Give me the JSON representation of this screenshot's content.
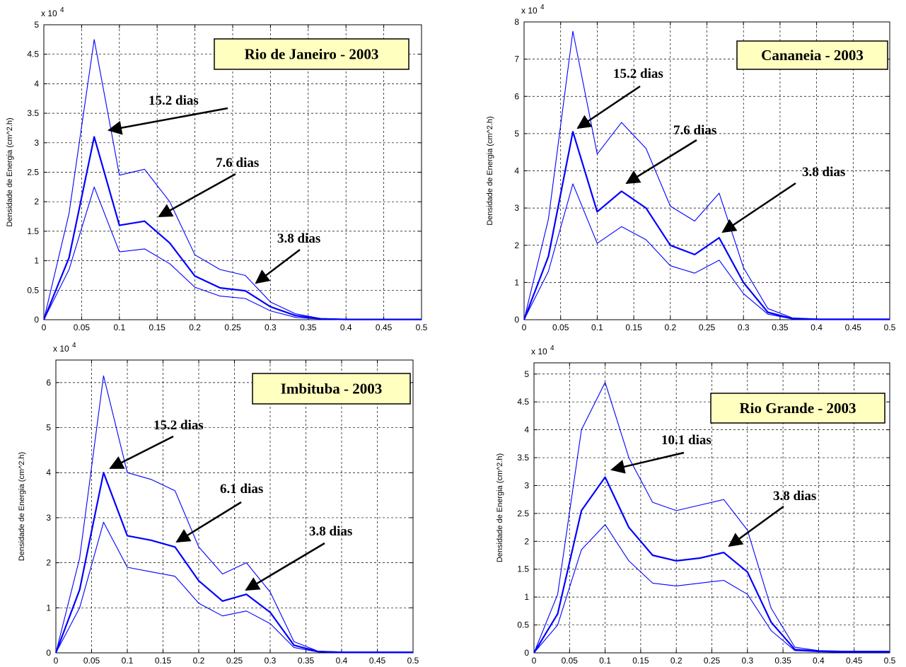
{
  "chart_data": [
    {
      "type": "line",
      "title": "Rio de Janeiro - 2003",
      "ylabel": "Densidade de Energia (cm^2.h)",
      "xlabel": "",
      "multiplier": "x 10",
      "multiplier_exp": "4",
      "xlim": [
        0,
        0.5
      ],
      "ylim": [
        0,
        50000
      ],
      "xticks": [
        "0",
        "0.05",
        "0.1",
        "0.15",
        "0.2",
        "0.25",
        "0.3",
        "0.35",
        "0.4",
        "0.45",
        "0.5"
      ],
      "yticks": [
        "0",
        "0.5",
        "1",
        "1.5",
        "2",
        "2.5",
        "3",
        "3.5",
        "4",
        "4.5",
        "5"
      ],
      "grid": true,
      "line_color": "#0000ff",
      "x": [
        0,
        0.0333,
        0.0667,
        0.1,
        0.1333,
        0.1667,
        0.2,
        0.2333,
        0.2667,
        0.3,
        0.3333,
        0.3667,
        0.4,
        0.4333,
        0.4667,
        0.5
      ],
      "series": [
        {
          "values": [
            0,
            18000,
            47500,
            24500,
            25500,
            20000,
            11000,
            8500,
            7500,
            3000,
            1000,
            200,
            100,
            100,
            100,
            100
          ]
        },
        {
          "values": [
            0,
            10500,
            31000,
            16000,
            16700,
            13000,
            7400,
            5400,
            4900,
            2200,
            700,
            150,
            50,
            50,
            50,
            50
          ]
        },
        {
          "values": [
            0,
            8500,
            22500,
            11500,
            12000,
            9500,
            5500,
            4000,
            3600,
            1500,
            400,
            100,
            30,
            30,
            30,
            30
          ]
        }
      ],
      "annotations": [
        {
          "text": "15.2 dias",
          "x": 0.0667,
          "y": 31000
        },
        {
          "text": "7.6 dias",
          "x": 0.1333,
          "y": 16700
        },
        {
          "text": "3.8 dias",
          "x": 0.2667,
          "y": 6000
        }
      ]
    },
    {
      "type": "line",
      "title": "Cananeia - 2003",
      "ylabel": "Densidade de Energia (cm^2.h)",
      "xlabel": "",
      "multiplier": "x 10",
      "multiplier_exp": "4",
      "xlim": [
        0,
        0.5
      ],
      "ylim": [
        0,
        80000
      ],
      "xticks": [
        "0",
        "0.05",
        "0.1",
        "0.15",
        "0.2",
        "0.25",
        "0.3",
        "0.35",
        "0.4",
        "0.45",
        "0.5"
      ],
      "yticks": [
        "0",
        "1",
        "2",
        "3",
        "4",
        "5",
        "6",
        "7",
        "8"
      ],
      "grid": true,
      "line_color": "#0000ff",
      "x": [
        0,
        0.0333,
        0.0667,
        0.1,
        0.1333,
        0.1667,
        0.2,
        0.2333,
        0.2667,
        0.3,
        0.3333,
        0.3667,
        0.4,
        0.4333,
        0.4667,
        0.5
      ],
      "series": [
        {
          "values": [
            0,
            27000,
            77500,
            44500,
            53000,
            46000,
            30500,
            26500,
            34000,
            14000,
            3000,
            500,
            200,
            200,
            200,
            200
          ]
        },
        {
          "values": [
            0,
            17000,
            50500,
            29000,
            34500,
            30000,
            20000,
            17500,
            22000,
            10000,
            2000,
            300,
            100,
            100,
            100,
            100
          ]
        },
        {
          "values": [
            0,
            13000,
            36500,
            20500,
            25000,
            21500,
            14500,
            12500,
            16000,
            7000,
            1500,
            200,
            50,
            50,
            50,
            50
          ]
        }
      ],
      "annotations": [
        {
          "text": "15.2 dias",
          "x": 0.0667,
          "y": 52000
        },
        {
          "text": "7.6 dias",
          "x": 0.1333,
          "y": 36000
        },
        {
          "text": "3.8 dias",
          "x": 0.2667,
          "y": 23000
        }
      ]
    },
    {
      "type": "line",
      "title": "Imbituba - 2003",
      "ylabel": "Densidade de Energia (cm^2.h)",
      "xlabel": "",
      "multiplier": "x 10",
      "multiplier_exp": "4",
      "xlim": [
        0,
        0.5
      ],
      "ylim": [
        0,
        65000
      ],
      "xticks": [
        "0",
        "0.05",
        "0.1",
        "0.15",
        "0.2",
        "0.25",
        "0.3",
        "0.35",
        "0.4",
        "0.45",
        "0.5"
      ],
      "yticks": [
        "0",
        "1",
        "2",
        "3",
        "4",
        "5",
        "6"
      ],
      "grid": true,
      "line_color": "#0000ff",
      "x": [
        0,
        0.0333,
        0.0667,
        0.1,
        0.1333,
        0.1667,
        0.2,
        0.2333,
        0.2667,
        0.3,
        0.3333,
        0.3667,
        0.4,
        0.4333,
        0.4667,
        0.5
      ],
      "series": [
        {
          "values": [
            0,
            21000,
            61500,
            40000,
            38500,
            36000,
            23500,
            17500,
            20000,
            13500,
            2500,
            400,
            200,
            200,
            200,
            200
          ]
        },
        {
          "values": [
            0,
            14000,
            40000,
            26000,
            25000,
            23500,
            16000,
            11500,
            13000,
            9000,
            1700,
            300,
            100,
            100,
            100,
            100
          ]
        },
        {
          "values": [
            0,
            10000,
            29000,
            19000,
            18000,
            17000,
            11000,
            8200,
            9300,
            6500,
            1200,
            200,
            50,
            50,
            50,
            50
          ]
        }
      ],
      "annotations": [
        {
          "text": "15.2 dias",
          "x": 0.0667,
          "y": 40000
        },
        {
          "text": "6.1 dias",
          "x": 0.1333,
          "y": 24000
        },
        {
          "text": "3.8 dias",
          "x": 0.2667,
          "y": 13500
        }
      ]
    },
    {
      "type": "line",
      "title": "Rio Grande - 2003",
      "ylabel": "Densidade de Energia (cm^2.h)",
      "xlabel": "",
      "multiplier": "x 10",
      "multiplier_exp": "4",
      "xlim": [
        0,
        0.5
      ],
      "ylim": [
        0,
        52000
      ],
      "xticks": [
        "0",
        "0.05",
        "0.1",
        "0.15",
        "0.2",
        "0.25",
        "0.3",
        "0.35",
        "0.4",
        "0.45",
        "0.5"
      ],
      "yticks": [
        "0",
        "0.5",
        "1",
        "1.5",
        "2",
        "2.5",
        "3",
        "3.5",
        "4",
        "4.5",
        "5"
      ],
      "grid": true,
      "line_color": "#0000ff",
      "x": [
        0,
        0.0333,
        0.0667,
        0.1,
        0.1333,
        0.1667,
        0.2,
        0.2333,
        0.2667,
        0.3,
        0.3333,
        0.3667,
        0.4,
        0.4333,
        0.4667,
        0.5
      ],
      "series": [
        {
          "values": [
            0,
            10500,
            40000,
            48500,
            35000,
            27000,
            25500,
            26500,
            27500,
            22000,
            8000,
            1000,
            400,
            300,
            300,
            300
          ]
        },
        {
          "values": [
            0,
            7000,
            25500,
            31500,
            22500,
            17500,
            16500,
            17000,
            18000,
            14500,
            5500,
            600,
            300,
            200,
            200,
            200
          ]
        },
        {
          "values": [
            0,
            5000,
            18500,
            23000,
            16500,
            12500,
            12000,
            12500,
            13000,
            10500,
            4000,
            400,
            200,
            100,
            100,
            100
          ]
        }
      ],
      "annotations": [
        {
          "text": "10.1 dias",
          "x": 0.1,
          "y": 32000
        },
        {
          "text": "3.8 dias",
          "x": 0.2667,
          "y": 18000
        }
      ]
    }
  ]
}
